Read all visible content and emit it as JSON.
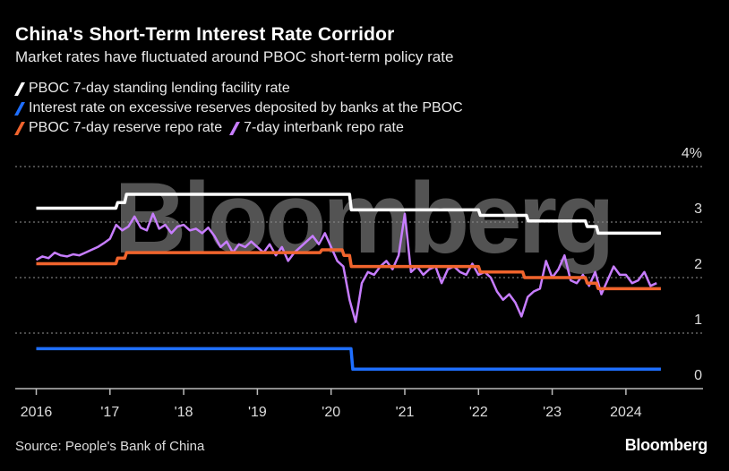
{
  "title": "China's Short-Term Interest Rate Corridor",
  "subtitle": "Market rates have fluctuated around PBOC short-term policy rate",
  "source": "Source: People's Bank of China",
  "logo": "Bloomberg",
  "watermark": "Bloomberg",
  "chart_data": {
    "type": "line",
    "legend_placement": "top-left",
    "grid": true,
    "ylim": [
      0,
      4
    ],
    "xlim": [
      2016,
      2024.45
    ],
    "y_ticks": [
      {
        "value": 0,
        "label": "0"
      },
      {
        "value": 1,
        "label": "1"
      },
      {
        "value": 2,
        "label": "2"
      },
      {
        "value": 3,
        "label": "3"
      },
      {
        "value": 4,
        "label": "4%"
      }
    ],
    "x_ticks": [
      {
        "value": 2016,
        "label": "2016"
      },
      {
        "value": 2017,
        "label": "'17"
      },
      {
        "value": 2018,
        "label": "'18"
      },
      {
        "value": 2019,
        "label": "'19"
      },
      {
        "value": 2020,
        "label": "'20"
      },
      {
        "value": 2021,
        "label": "'21"
      },
      {
        "value": 2022,
        "label": "'22"
      },
      {
        "value": 2023,
        "label": "'23"
      },
      {
        "value": 2024,
        "label": "2024"
      }
    ],
    "series": [
      {
        "name": "PBOC 7-day standing lending facility rate",
        "color": "#ffffff",
        "style": "step",
        "x": [
          2016.0,
          2017.08,
          2017.2,
          2020.25,
          2022.0,
          2022.65,
          2023.45,
          2023.6,
          2024.45
        ],
        "y": [
          3.25,
          3.35,
          3.5,
          3.22,
          3.12,
          3.02,
          2.92,
          2.8,
          2.8
        ]
      },
      {
        "name": "Interest rate on excessive reserves deposited by banks at the PBOC",
        "color": "#1f6fff",
        "style": "step",
        "x": [
          2016.0,
          2020.27,
          2024.45
        ],
        "y": [
          0.72,
          0.35,
          0.35
        ]
      },
      {
        "name": "PBOC 7-day reserve repo rate",
        "color": "#f0642d",
        "style": "step",
        "x": [
          2016.0,
          2017.08,
          2017.2,
          2019.85,
          2020.15,
          2020.25,
          2022.0,
          2022.6,
          2023.45,
          2023.6,
          2024.45
        ],
        "y": [
          2.25,
          2.35,
          2.45,
          2.5,
          2.4,
          2.2,
          2.1,
          2.0,
          1.9,
          1.8,
          1.8
        ]
      },
      {
        "name": "7-day interbank repo rate",
        "color": "#c77dff",
        "style": "line",
        "x_start": 2016.0,
        "x_step_months": 1,
        "y": [
          2.32,
          2.38,
          2.35,
          2.45,
          2.4,
          2.38,
          2.42,
          2.4,
          2.45,
          2.5,
          2.55,
          2.62,
          2.7,
          2.95,
          2.85,
          2.92,
          3.1,
          2.9,
          2.85,
          3.15,
          2.88,
          2.95,
          2.8,
          2.92,
          2.95,
          2.85,
          2.88,
          2.8,
          2.9,
          2.75,
          2.55,
          2.65,
          2.45,
          2.6,
          2.55,
          2.65,
          2.55,
          2.45,
          2.6,
          2.4,
          2.55,
          2.3,
          2.45,
          2.55,
          2.65,
          2.75,
          2.6,
          2.8,
          2.55,
          2.3,
          2.2,
          1.6,
          1.2,
          1.9,
          2.1,
          2.05,
          2.2,
          2.3,
          2.15,
          2.4,
          3.15,
          2.1,
          2.2,
          2.05,
          2.15,
          2.2,
          1.9,
          2.15,
          2.2,
          2.1,
          2.05,
          2.25,
          2.05,
          2.1,
          2.0,
          1.75,
          1.6,
          1.7,
          1.55,
          1.3,
          1.65,
          1.75,
          1.8,
          2.3,
          2.0,
          2.15,
          2.4,
          1.95,
          1.9,
          2.05,
          1.85,
          2.1,
          1.7,
          1.95,
          2.2,
          2.05,
          2.05,
          1.9,
          1.95,
          2.1,
          1.85,
          1.9
        ]
      }
    ]
  }
}
